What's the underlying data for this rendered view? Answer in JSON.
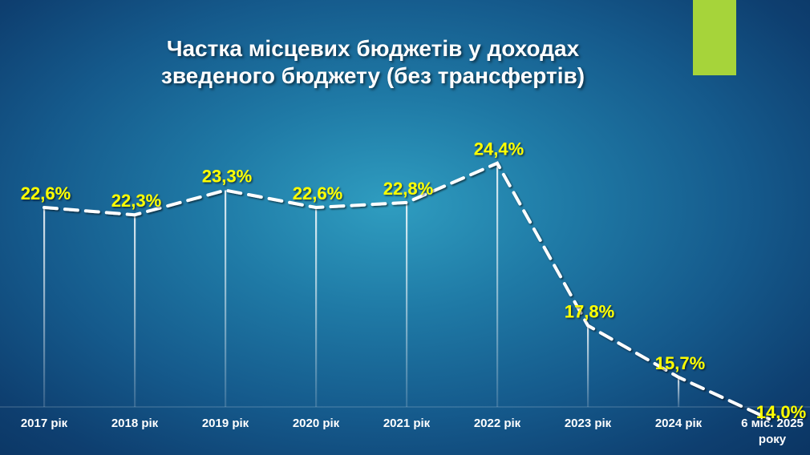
{
  "title_lines": [
    "Частка місцевих бюджетів у доходах",
    "зведеного бюджету (без трансфертів)"
  ],
  "colors": {
    "value_label": "#ffff00",
    "line": "#ffffff",
    "accent": "#a6d43a"
  },
  "chart_data": {
    "type": "line",
    "title": "Частка місцевих бюджетів у доходах зведеного бюджету (без трансфертів)",
    "categories": [
      "2017 рік",
      "2018 рік",
      "2019 рік",
      "2020 рік",
      "2021 рік",
      "2022 рік",
      "2023 рік",
      "2024 рік",
      "6 міс. 2025 року"
    ],
    "series": [
      {
        "values": [
          22.6,
          22.3,
          23.3,
          22.6,
          22.8,
          24.4,
          17.8,
          15.7,
          14.0
        ],
        "labels": [
          "22,6%",
          "22,3%",
          "23,3%",
          "22,6%",
          "22,8%",
          "24,4%",
          "17,8%",
          "15,7%",
          "14,0%"
        ]
      }
    ],
    "line_style": "dashed",
    "grid": false
  }
}
